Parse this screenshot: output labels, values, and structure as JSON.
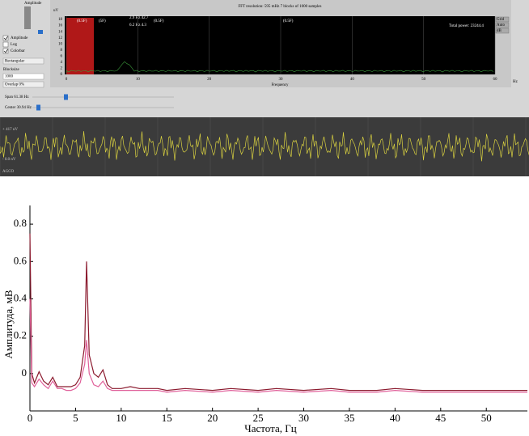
{
  "panel": {
    "title": "Amplitude",
    "checkboxes": [
      {
        "label": "Amplitude",
        "checked": true
      },
      {
        "label": "Log",
        "checked": false
      },
      {
        "label": "Colorbar",
        "checked": true
      }
    ],
    "window": "Rectangular",
    "blocksize_label": "Blocksize",
    "blocksize": "1000",
    "overlap": "Overlap 0%"
  },
  "spectrum": {
    "header": "FFT resolution: 595 mHz 7 blocks of 1000 samples",
    "unit": "uV",
    "yticks": [
      0,
      2,
      4,
      6,
      8,
      10,
      12,
      14,
      16,
      18
    ],
    "xticks": [
      0,
      10,
      20,
      30,
      40,
      50,
      60
    ],
    "x_unit": "Hz",
    "x_label": "Frequency",
    "total_power": "Total power: 23244.4",
    "markers": [
      "(0.5F)",
      "(5F)",
      "(0.5F)",
      "(0.5F)"
    ],
    "peak_labels": [
      "2.9 Hz 42.7",
      "6.2 Hz 4.3"
    ],
    "buttons": [
      "Grid",
      "Auto",
      "dB"
    ]
  },
  "sliders": [
    {
      "label": "Span 61.38 Hz"
    },
    {
      "label": "Center 30.94 Hz"
    }
  ],
  "eeg": {
    "top_label": "+ 417 uV",
    "bottom_label": "- 0.0 nV",
    "channel": "AGCO"
  },
  "chart_data": {
    "type": "line",
    "x_label": "Частота, Гц",
    "y_label": "Амплитуда, мВ",
    "x": [
      0,
      0.2,
      0.5,
      1,
      1.5,
      2,
      2.5,
      3,
      3.5,
      4,
      4.5,
      5,
      5.5,
      6,
      6.2,
      6.5,
      7,
      7.5,
      8,
      8.5,
      9,
      10,
      11,
      12,
      13,
      14,
      15,
      17,
      20,
      22,
      25,
      27,
      30,
      33,
      35,
      38,
      40,
      43,
      45,
      48,
      50,
      52,
      54.5
    ],
    "series": [
      {
        "color": "#8b1a2e",
        "values": [
          0.75,
          0.0,
          -0.05,
          0.01,
          -0.04,
          -0.06,
          -0.02,
          -0.07,
          -0.07,
          -0.07,
          -0.07,
          -0.06,
          -0.02,
          0.15,
          0.6,
          0.1,
          0.0,
          -0.02,
          0.02,
          -0.06,
          -0.08,
          -0.08,
          -0.07,
          -0.08,
          -0.08,
          -0.08,
          -0.09,
          -0.08,
          -0.09,
          -0.08,
          -0.09,
          -0.08,
          -0.09,
          -0.08,
          -0.09,
          -0.09,
          -0.08,
          -0.09,
          -0.09,
          -0.09,
          -0.09,
          -0.09,
          -0.09
        ]
      },
      {
        "color": "#e0609a",
        "values": [
          0.4,
          -0.05,
          -0.07,
          -0.03,
          -0.06,
          -0.08,
          -0.04,
          -0.08,
          -0.08,
          -0.09,
          -0.09,
          -0.08,
          -0.05,
          0.05,
          0.18,
          0.0,
          -0.06,
          -0.07,
          -0.04,
          -0.08,
          -0.09,
          -0.09,
          -0.09,
          -0.09,
          -0.09,
          -0.09,
          -0.1,
          -0.09,
          -0.1,
          -0.09,
          -0.1,
          -0.09,
          -0.1,
          -0.09,
          -0.1,
          -0.1,
          -0.09,
          -0.1,
          -0.1,
          -0.1,
          -0.1,
          -0.1,
          -0.1
        ]
      }
    ],
    "xlim": [
      0,
      54.5
    ],
    "ylim": [
      -0.2,
      0.9
    ],
    "xticks": [
      0,
      5,
      10,
      15,
      20,
      25,
      30,
      35,
      40,
      45,
      50
    ],
    "yticks": [
      0,
      0.2,
      0.4,
      0.6,
      0.8
    ]
  }
}
